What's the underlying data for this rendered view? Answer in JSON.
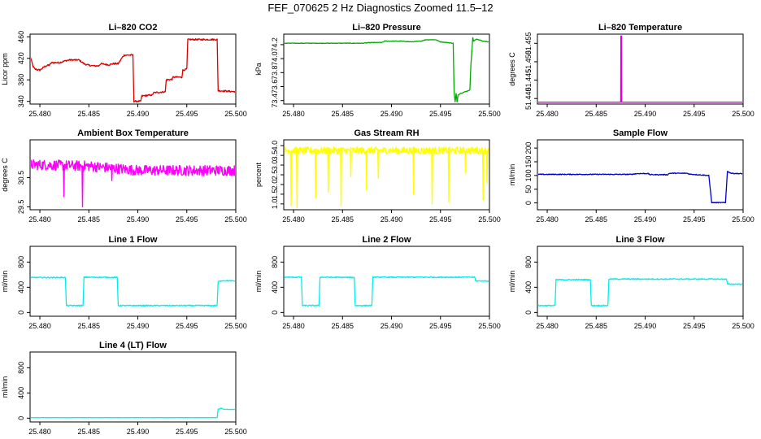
{
  "figure": {
    "title": "FEF_070625  2 Hz Diagnostics Zoomed 11.5–12"
  },
  "chart_data": [
    {
      "type": "line",
      "title": "Li–820 CO2",
      "ylabel": "Licor ppm",
      "color": "#dd0000",
      "xlim": [
        25.479,
        25.5
      ],
      "ylim": [
        335,
        465
      ],
      "xticks": [
        25.48,
        25.485,
        25.49,
        25.495,
        25.5
      ],
      "xtick_labels": [
        "25.480",
        "25.485",
        "25.490",
        "25.495",
        "25.500"
      ],
      "yticks": [
        340,
        380,
        420,
        460
      ],
      "ytick_labels": [
        "340",
        "380",
        "420",
        "460"
      ],
      "noise": 1.5,
      "series": [
        {
          "x": [
            25.479,
            25.4793,
            25.4795,
            25.48,
            25.4805,
            25.481,
            25.4812,
            25.482,
            25.4825,
            25.483,
            25.484,
            25.4845,
            25.485,
            25.4855,
            25.486,
            25.4862,
            25.487,
            25.4875,
            25.488,
            25.4885,
            25.4886,
            25.4895,
            25.4896,
            25.4903,
            25.4904,
            25.4915,
            25.4916,
            25.4928,
            25.4929,
            25.4935,
            25.4936,
            25.4945,
            25.4946,
            25.495,
            25.4951,
            25.4965,
            25.4975,
            25.4981,
            25.4982,
            25.5
          ],
          "y": [
            425,
            405,
            400,
            398,
            405,
            408,
            412,
            412,
            415,
            417,
            417,
            410,
            407,
            406,
            406,
            410,
            408,
            410,
            410,
            424,
            426,
            426,
            340,
            340,
            350,
            352,
            356,
            358,
            380,
            381,
            385,
            385,
            398,
            400,
            455,
            455,
            455,
            455,
            360,
            358
          ]
        }
      ]
    },
    {
      "type": "line",
      "title": "Li–820 Pressure",
      "ylabel": "kPa",
      "color": "#00aa00",
      "xlim": [
        25.479,
        25.5
      ],
      "ylim": [
        73.35,
        74.35
      ],
      "xticks": [
        25.48,
        25.485,
        25.49,
        25.495,
        25.5
      ],
      "xtick_labels": [
        "25.480",
        "25.485",
        "25.490",
        "25.495",
        "25.500"
      ],
      "yticks": [
        73.4,
        73.6,
        73.8,
        74.0,
        74.2
      ],
      "ytick_labels": [
        "73.4",
        "73.6",
        "73.8",
        "74.0",
        "74.2"
      ],
      "noise": 0.004,
      "series": [
        {
          "x": [
            25.479,
            25.485,
            25.487,
            25.488,
            25.489,
            25.4893,
            25.4905,
            25.491,
            25.492,
            25.493,
            25.4935,
            25.4945,
            25.495,
            25.4963,
            25.4964,
            25.4965,
            25.4966,
            25.4967,
            25.4968,
            25.497,
            25.498,
            25.4981,
            25.4982,
            25.4983,
            25.4984,
            25.4987,
            25.4993,
            25.5
          ],
          "y": [
            74.22,
            74.22,
            74.22,
            74.23,
            74.23,
            74.25,
            74.25,
            74.25,
            74.24,
            74.25,
            74.27,
            74.27,
            74.24,
            74.22,
            73.5,
            73.38,
            73.5,
            73.38,
            73.48,
            73.5,
            73.55,
            73.9,
            74.1,
            74.3,
            74.25,
            74.28,
            74.25,
            74.24
          ]
        }
      ]
    },
    {
      "type": "line",
      "title": "Li–820 Temperature",
      "ylabel": "degrees C",
      "color": "#dd00dd",
      "xlim": [
        25.479,
        25.5
      ],
      "ylim": [
        51.4385,
        51.4575
      ],
      "xticks": [
        25.48,
        25.485,
        25.49,
        25.495,
        25.5
      ],
      "xtick_labels": [
        "25.480",
        "25.485",
        "25.490",
        "25.495",
        "25.500"
      ],
      "yticks": [
        51.44,
        51.445,
        51.45,
        51.455
      ],
      "ytick_labels": [
        "51.440",
        "51.445",
        "51.450",
        "51.455"
      ],
      "noise": 0,
      "series": [
        {
          "x": [
            25.479,
            25.4875,
            25.48752,
            25.48758,
            25.4876,
            25.5
          ],
          "y": [
            51.439,
            51.439,
            51.457,
            51.457,
            51.439,
            51.439
          ]
        }
      ]
    },
    {
      "type": "line",
      "title": "Ambient Box Temperature",
      "ylabel": "degrees C",
      "color": "#ff00ff",
      "xlim": [
        25.479,
        25.5
      ],
      "ylim": [
        29.4,
        31.8
      ],
      "xticks": [
        25.48,
        25.485,
        25.49,
        25.495,
        25.5
      ],
      "xtick_labels": [
        "25.480",
        "25.485",
        "25.490",
        "25.495",
        "25.500"
      ],
      "yticks": [
        29.5,
        30.5
      ],
      "ytick_labels": [
        "29.5",
        "30.5"
      ],
      "noise": 0.18,
      "spikes": [
        {
          "x": 25.4824,
          "y": 29.85
        },
        {
          "x": 25.4843,
          "y": 29.5
        },
        {
          "x": 25.4873,
          "y": 30.4
        },
        {
          "x": 25.492,
          "y": 30.6
        }
      ],
      "series": [
        {
          "x": [
            25.479,
            25.485,
            25.49,
            25.495,
            25.5
          ],
          "y": [
            30.95,
            30.9,
            30.75,
            30.75,
            30.75
          ]
        }
      ]
    },
    {
      "type": "line",
      "title": "Gas Stream RH",
      "ylabel": "percent",
      "color": "#ffff00",
      "xlim": [
        25.479,
        25.5
      ],
      "ylim": [
        0.7,
        4.3
      ],
      "xticks": [
        25.48,
        25.485,
        25.49,
        25.495,
        25.5
      ],
      "xtick_labels": [
        "25.480",
        "25.485",
        "25.490",
        "25.495",
        "25.500"
      ],
      "yticks": [
        1.0,
        1.5,
        2.0,
        2.5,
        3.0,
        3.5,
        4.0
      ],
      "ytick_labels": [
        "1.0",
        "1.5",
        "2.0",
        "2.5",
        "3.0",
        "3.5",
        "4.0"
      ],
      "noise": 0.18,
      "spikes": [
        {
          "x": 25.4797,
          "y": 0.9
        },
        {
          "x": 25.4803,
          "y": 0.8
        },
        {
          "x": 25.4822,
          "y": 1.3
        },
        {
          "x": 25.4835,
          "y": 1.6
        },
        {
          "x": 25.4848,
          "y": 0.9
        },
        {
          "x": 25.4858,
          "y": 2.4
        },
        {
          "x": 25.4874,
          "y": 1.7
        },
        {
          "x": 25.4886,
          "y": 2.3
        },
        {
          "x": 25.4922,
          "y": 1.5
        },
        {
          "x": 25.4941,
          "y": 1.0
        },
        {
          "x": 25.4958,
          "y": 1.1
        },
        {
          "x": 25.4975,
          "y": 2.6
        },
        {
          "x": 25.4993,
          "y": 1.2
        },
        {
          "x": 25.4997,
          "y": 2.1
        }
      ],
      "series": [
        {
          "x": [
            25.479,
            25.5
          ],
          "y": [
            3.75,
            3.75
          ]
        }
      ]
    },
    {
      "type": "line",
      "title": "Sample Flow",
      "ylabel": "ml/min",
      "color": "#0000cc",
      "xlim": [
        25.479,
        25.5
      ],
      "ylim": [
        -25,
        230
      ],
      "xticks": [
        25.48,
        25.485,
        25.49,
        25.495,
        25.5
      ],
      "xtick_labels": [
        "25.480",
        "25.485",
        "25.490",
        "25.495",
        "25.500"
      ],
      "yticks": [
        0,
        50,
        100,
        150,
        200
      ],
      "ytick_labels": [
        "0",
        "50",
        "100",
        "150",
        "200"
      ],
      "noise": 1.5,
      "series": [
        {
          "x": [
            25.479,
            25.4885,
            25.4893,
            25.4903,
            25.4905,
            25.4923,
            25.4925,
            25.4943,
            25.4945,
            25.4965,
            25.4968,
            25.4982,
            25.4984,
            25.4988,
            25.5
          ],
          "y": [
            104,
            104,
            107,
            107,
            103,
            103,
            108,
            108,
            105,
            100,
            1,
            1,
            115,
            108,
            106
          ]
        }
      ]
    },
    {
      "type": "line",
      "title": "Line 1 Flow",
      "ylabel": "ml/min",
      "color": "#00eeee",
      "xlim": [
        25.479,
        25.5
      ],
      "ylim": [
        -60,
        1050
      ],
      "xticks": [
        25.48,
        25.485,
        25.49,
        25.495,
        25.5
      ],
      "xtick_labels": [
        "25.480",
        "25.485",
        "25.490",
        "25.495",
        "25.500"
      ],
      "yticks": [
        0,
        400,
        800
      ],
      "ytick_labels": [
        "0",
        "400",
        "800"
      ],
      "noise": 8,
      "series": [
        {
          "x": [
            25.479,
            25.4826,
            25.4827,
            25.4844,
            25.4845,
            25.4879,
            25.488,
            25.4981,
            25.4982,
            25.4986,
            25.5
          ],
          "y": [
            555,
            555,
            110,
            110,
            560,
            555,
            110,
            110,
            490,
            505,
            500
          ]
        }
      ]
    },
    {
      "type": "line",
      "title": "Line 2 Flow",
      "ylabel": "ml/min",
      "color": "#00eeee",
      "xlim": [
        25.479,
        25.5
      ],
      "ylim": [
        -60,
        1050
      ],
      "xticks": [
        25.48,
        25.485,
        25.49,
        25.495,
        25.5
      ],
      "xtick_labels": [
        "25.480",
        "25.485",
        "25.490",
        "25.495",
        "25.500"
      ],
      "yticks": [
        0,
        400,
        800
      ],
      "ytick_labels": [
        "0",
        "400",
        "800"
      ],
      "noise": 8,
      "series": [
        {
          "x": [
            25.479,
            25.4808,
            25.4809,
            25.4826,
            25.4827,
            25.4862,
            25.4863,
            25.488,
            25.4881,
            25.4985,
            25.4986,
            25.5
          ],
          "y": [
            560,
            560,
            110,
            110,
            560,
            555,
            110,
            110,
            560,
            560,
            500,
            500
          ]
        }
      ]
    },
    {
      "type": "line",
      "title": "Line 3 Flow",
      "ylabel": "ml/min",
      "color": "#00eeee",
      "xlim": [
        25.479,
        25.5
      ],
      "ylim": [
        -60,
        1050
      ],
      "xticks": [
        25.48,
        25.485,
        25.49,
        25.495,
        25.5
      ],
      "xtick_labels": [
        "25.480",
        "25.485",
        "25.490",
        "25.495",
        "25.500"
      ],
      "yticks": [
        0,
        400,
        800
      ],
      "ytick_labels": [
        "0",
        "400",
        "800"
      ],
      "noise": 8,
      "series": [
        {
          "x": [
            25.479,
            25.4808,
            25.4809,
            25.4844,
            25.4845,
            25.4862,
            25.4863,
            25.4983,
            25.4984,
            25.5
          ],
          "y": [
            110,
            110,
            520,
            520,
            110,
            110,
            530,
            530,
            450,
            450
          ]
        }
      ]
    },
    {
      "type": "line",
      "title": "Line 4 (LT) Flow",
      "ylabel": "ml/min",
      "color": "#00eeee",
      "xlim": [
        25.479,
        25.5
      ],
      "ylim": [
        -60,
        1050
      ],
      "xticks": [
        25.48,
        25.485,
        25.49,
        25.495,
        25.5
      ],
      "xtick_labels": [
        "25.480",
        "25.485",
        "25.490",
        "25.495",
        "25.500"
      ],
      "yticks": [
        0,
        400,
        800
      ],
      "ytick_labels": [
        "0",
        "400",
        "800"
      ],
      "noise": 2,
      "series": [
        {
          "x": [
            25.479,
            25.4981,
            25.4982,
            25.4985,
            25.4988,
            25.5
          ],
          "y": [
            8,
            8,
            140,
            160,
            140,
            140
          ]
        }
      ]
    }
  ]
}
